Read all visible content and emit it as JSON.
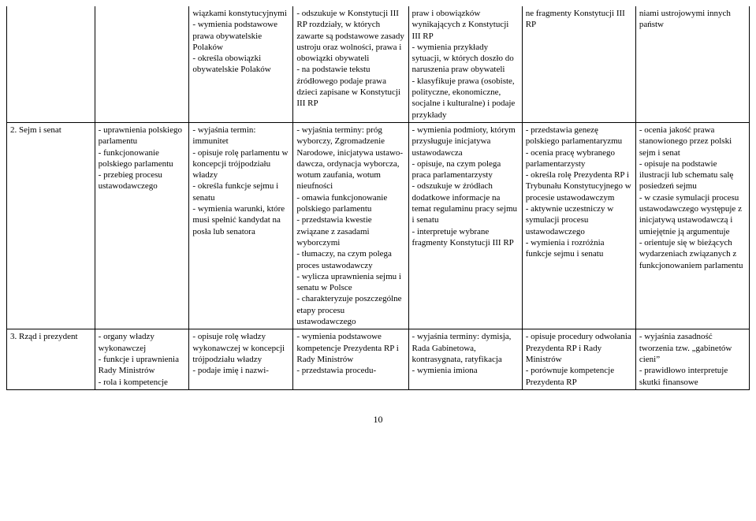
{
  "page_number": "10",
  "rows": [
    {
      "c1": "",
      "c2": "",
      "c3": "wiązkami konstytu­cyjnymi\n- wymienia podsta­wowe prawa obywa­telskie Polaków\n- określa obowiązki obywatelskie Polaków",
      "c4": "- odszukuje w Konsty­tucji III RP rozdziały, w których zawarte są podstawowe zasady ustroju oraz wolności, prawa i obowiązki obywateli\n- na podstawie tekstu źródłowego podaje prawa dzieci zapisane w Konstytucji III RP",
      "c5": "praw i obowiązków wynikających z Kon­stytucji III RP\n- wymienia przykłady sytuacji, w których doszło do naruszenia praw obywateli\n- klasyfikuje prawa (osobiste, polityczne, ekonomiczne, socjalne i kulturalne) i podaje przykłady",
      "c6": "ne fragmenty Konstytucji III RP",
      "c7": "niami ustrojowymi innych państw"
    },
    {
      "c1": "2. Sejm i senat",
      "c2": "- uprawnienia pol­skiego parlamentu\n- funkcjonowanie polskiego parlamentu\n- przebieg procesu ustawodawczego",
      "c3": "- wyjaśnia termin: immunitet\n- opisuje rolę parla­mentu w koncepcji trójpodziału władzy\n- określa funkcje sej­mu i senatu\n- wymienia warunki, które musi spełnić kandydat na posła lub senatora",
      "c4": "- wyjaśnia terminy: próg wyborczy, Zgro­madzenie Narodowe, inicjatywa ustawo­dawcza, ordynacja wyborcza, wotum zaufania, wotum nieufności\n- omawia funkcjono­wanie polskiego parlamentu\n- przedstawia kwestie związane z zasadami wyborczymi\n- tłumaczy, na czym polega proces ustawo­dawczy\n- wylicza uprawnienia sejmu i senatu w Polsce\n- charakteryzuje po­szczególne etapy pro­cesu ustawodawczego",
      "c5": "- wymienia podmioty, którym przysługuje inicjatywa ustawo­dawcza\n- opisuje, na czym polega praca parla­mentarzysty\n- odszukuje w źró­dłach dodatkowe informacje na temat regulaminu pracy sejmu i senatu\n- interpretuje wybrane fragmenty Konstytucji III RP",
      "c6": "- przedstawia genezę polskiego parlamenta­ryzmu\n- ocenia pracę wybra­nego parlamentarzy­sty\n- określa rolę Prezy­denta RP i Trybunału Konstytucyjnego w procesie ustawo­dawczym\n- aktywnie uczestni­czy w symulacji pro­cesu ustawodawczego\n- wymienia i rozróż­nia funkcje sejmu i senatu",
      "c7": "- ocenia jakość prawa stanowionego przez polski sejm i senat\n- opisuje na podstawie ilustracji lub schematu salę posiedzeń sejmu\n- w czasie symulacji procesu ustawo­dawczego występuje z inicjatywą ustawo­dawczą i umiejętnie ją argumentuje\n- orientuje się w bieżą­cych wydarzeniach związanych z funkcjo­nowaniem parlamentu"
    },
    {
      "c1": "3. Rząd i prezydent",
      "c2": "- organy władzy wykonawczej\n- funkcje i uprawnie­nia Rady Ministrów\n- rola i kompetencje",
      "c3": "- opisuje rolę władzy wykonawczej w kon­cepcji trójpodziału władzy\n- podaje imię i nazwi-",
      "c4": "- wymienia podsta­wowe kompetencje Prezydenta RP i Rady Ministrów\n- przedstawia procedu-",
      "c5": "- wyjaśnia terminy: dymisja, Rada Gabine­towa, kontrasygnata, ratyfikacja\n- wymienia imiona",
      "c6": "- opisuje procedury odwołania Prezydenta RP i Rady Ministrów\n- porównuje kompe­tencje Prezydenta RP",
      "c7": "- wyjaśnia zasadność tworzenia tzw. „gabine­tów cieni”\n- prawidłowo interpre­tuje skutki finansowe"
    }
  ]
}
